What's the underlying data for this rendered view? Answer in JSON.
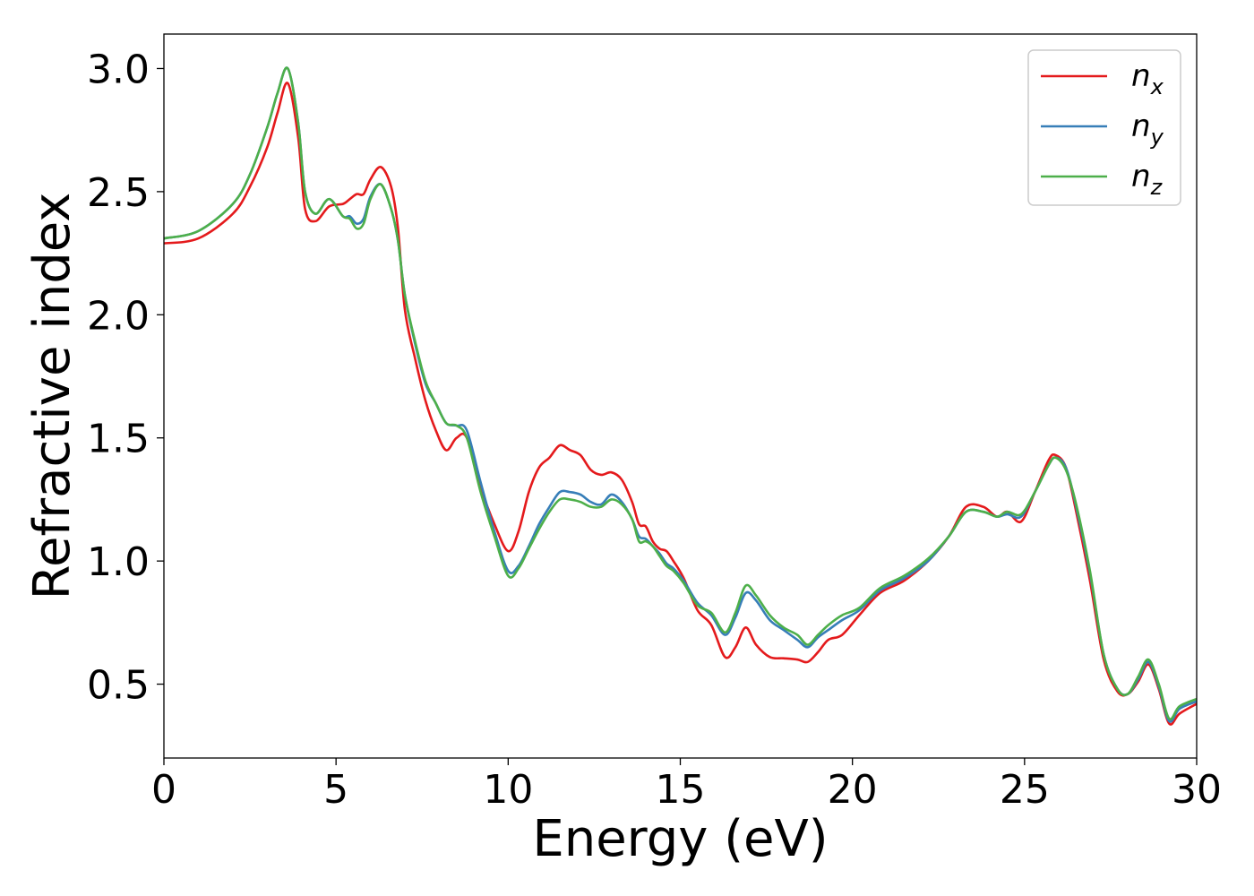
{
  "chart_data": {
    "type": "line",
    "xlabel": "Energy (eV)",
    "ylabel": "Refractive index",
    "xlim": [
      0,
      30
    ],
    "ylim": [
      0.2,
      3.14
    ],
    "xticks": [
      0,
      5,
      10,
      15,
      20,
      25,
      30
    ],
    "xtick_labels": [
      "0",
      "5",
      "10",
      "15",
      "20",
      "25",
      "30"
    ],
    "yticks": [
      0.5,
      1.0,
      1.5,
      2.0,
      2.5,
      3.0
    ],
    "ytick_labels": [
      "0.5",
      "1.0",
      "1.5",
      "2.0",
      "2.5",
      "3.0"
    ],
    "grid": false,
    "legend_position": "top-right",
    "series": [
      {
        "name": "n_x",
        "label_base": "n",
        "label_sub": "x",
        "color": "#e41a1c",
        "x": [
          0,
          1,
          2,
          2.5,
          3,
          3.3,
          3.6,
          3.9,
          4.1,
          4.4,
          4.8,
          5.2,
          5.4,
          5.6,
          5.8,
          6.0,
          6.3,
          6.6,
          6.8,
          7.0,
          7.3,
          7.6,
          7.9,
          8.2,
          8.5,
          8.8,
          9.2,
          9.6,
          10.0,
          10.3,
          10.6,
          10.9,
          11.2,
          11.5,
          11.8,
          12.1,
          12.4,
          12.7,
          13.0,
          13.3,
          13.6,
          13.8,
          14.0,
          14.2,
          14.4,
          14.6,
          14.8,
          15.1,
          15.5,
          15.9,
          16.3,
          16.6,
          16.9,
          17.2,
          17.6,
          18.0,
          18.4,
          18.7,
          19.0,
          19.3,
          19.7,
          20.2,
          20.8,
          21.5,
          22.2,
          22.8,
          23.3,
          23.8,
          24.2,
          24.5,
          24.9,
          25.3,
          25.7,
          25.9,
          26.2,
          26.5,
          26.9,
          27.3,
          27.7,
          28.0,
          28.3,
          28.6,
          28.9,
          29.2,
          29.5,
          30.0
        ],
        "y": [
          2.29,
          2.31,
          2.41,
          2.52,
          2.68,
          2.82,
          2.94,
          2.72,
          2.43,
          2.38,
          2.44,
          2.45,
          2.47,
          2.49,
          2.49,
          2.55,
          2.6,
          2.52,
          2.35,
          2.02,
          1.82,
          1.65,
          1.53,
          1.45,
          1.5,
          1.5,
          1.3,
          1.15,
          1.04,
          1.12,
          1.28,
          1.38,
          1.42,
          1.47,
          1.45,
          1.43,
          1.37,
          1.35,
          1.36,
          1.33,
          1.24,
          1.15,
          1.14,
          1.08,
          1.05,
          1.04,
          1.0,
          0.93,
          0.8,
          0.74,
          0.61,
          0.65,
          0.73,
          0.66,
          0.61,
          0.605,
          0.6,
          0.59,
          0.63,
          0.68,
          0.7,
          0.78,
          0.87,
          0.92,
          1.0,
          1.1,
          1.22,
          1.22,
          1.18,
          1.2,
          1.16,
          1.28,
          1.41,
          1.43,
          1.38,
          1.2,
          0.92,
          0.6,
          0.47,
          0.46,
          0.51,
          0.58,
          0.48,
          0.34,
          0.38,
          0.42
        ]
      },
      {
        "name": "n_y",
        "label_base": "n",
        "label_sub": "y",
        "color": "#377eb8",
        "x": [
          0,
          1,
          2,
          2.5,
          3,
          3.3,
          3.6,
          3.9,
          4.1,
          4.4,
          4.8,
          5.2,
          5.4,
          5.6,
          5.8,
          6.0,
          6.3,
          6.6,
          6.8,
          7.0,
          7.3,
          7.6,
          7.9,
          8.2,
          8.5,
          8.8,
          9.2,
          9.6,
          10.0,
          10.3,
          10.6,
          10.9,
          11.2,
          11.5,
          11.8,
          12.1,
          12.4,
          12.7,
          13.0,
          13.3,
          13.6,
          13.8,
          14.0,
          14.2,
          14.4,
          14.6,
          14.8,
          15.1,
          15.5,
          15.9,
          16.3,
          16.6,
          16.9,
          17.2,
          17.6,
          18.0,
          18.4,
          18.7,
          19.0,
          19.3,
          19.7,
          20.2,
          20.8,
          21.5,
          22.2,
          22.8,
          23.3,
          23.8,
          24.2,
          24.5,
          24.9,
          25.3,
          25.7,
          25.9,
          26.2,
          26.5,
          26.9,
          27.3,
          27.7,
          28.0,
          28.3,
          28.6,
          28.9,
          29.2,
          29.5,
          30.0
        ],
        "y": [
          2.31,
          2.34,
          2.45,
          2.57,
          2.76,
          2.9,
          3.0,
          2.78,
          2.5,
          2.41,
          2.47,
          2.4,
          2.4,
          2.37,
          2.39,
          2.48,
          2.53,
          2.43,
          2.3,
          2.08,
          1.88,
          1.72,
          1.64,
          1.56,
          1.55,
          1.53,
          1.32,
          1.12,
          0.96,
          0.98,
          1.06,
          1.15,
          1.22,
          1.28,
          1.28,
          1.27,
          1.24,
          1.23,
          1.27,
          1.24,
          1.17,
          1.1,
          1.09,
          1.06,
          1.03,
          0.99,
          0.97,
          0.92,
          0.83,
          0.78,
          0.7,
          0.77,
          0.87,
          0.84,
          0.76,
          0.72,
          0.68,
          0.65,
          0.69,
          0.72,
          0.76,
          0.8,
          0.88,
          0.93,
          1.0,
          1.1,
          1.2,
          1.2,
          1.18,
          1.19,
          1.18,
          1.28,
          1.39,
          1.42,
          1.38,
          1.22,
          0.95,
          0.62,
          0.48,
          0.46,
          0.52,
          0.59,
          0.49,
          0.35,
          0.4,
          0.43
        ]
      },
      {
        "name": "n_z",
        "label_base": "n",
        "label_sub": "z",
        "color": "#4daf4a",
        "x": [
          0,
          1,
          2,
          2.5,
          3,
          3.3,
          3.6,
          3.9,
          4.1,
          4.4,
          4.8,
          5.2,
          5.4,
          5.6,
          5.8,
          6.0,
          6.3,
          6.6,
          6.8,
          7.0,
          7.3,
          7.6,
          7.9,
          8.2,
          8.5,
          8.8,
          9.2,
          9.6,
          10.0,
          10.3,
          10.6,
          10.9,
          11.2,
          11.5,
          11.8,
          12.1,
          12.4,
          12.7,
          13.0,
          13.3,
          13.6,
          13.8,
          14.0,
          14.2,
          14.4,
          14.6,
          14.8,
          15.1,
          15.5,
          15.9,
          16.3,
          16.6,
          16.9,
          17.2,
          17.6,
          18.0,
          18.4,
          18.7,
          19.0,
          19.3,
          19.7,
          20.2,
          20.8,
          21.5,
          22.2,
          22.8,
          23.3,
          23.8,
          24.2,
          24.5,
          24.9,
          25.3,
          25.7,
          25.9,
          26.2,
          26.5,
          26.9,
          27.3,
          27.7,
          28.0,
          28.3,
          28.6,
          28.9,
          29.2,
          29.5,
          30.0
        ],
        "y": [
          2.31,
          2.34,
          2.45,
          2.57,
          2.76,
          2.9,
          3.0,
          2.78,
          2.5,
          2.41,
          2.47,
          2.4,
          2.39,
          2.35,
          2.37,
          2.47,
          2.53,
          2.43,
          2.3,
          2.08,
          1.89,
          1.73,
          1.64,
          1.56,
          1.55,
          1.5,
          1.28,
          1.1,
          0.94,
          0.97,
          1.05,
          1.13,
          1.2,
          1.25,
          1.25,
          1.24,
          1.22,
          1.22,
          1.25,
          1.23,
          1.17,
          1.08,
          1.08,
          1.06,
          1.02,
          0.98,
          0.96,
          0.91,
          0.82,
          0.79,
          0.71,
          0.79,
          0.9,
          0.86,
          0.78,
          0.73,
          0.7,
          0.66,
          0.7,
          0.74,
          0.78,
          0.81,
          0.89,
          0.94,
          1.01,
          1.1,
          1.2,
          1.2,
          1.18,
          1.2,
          1.19,
          1.28,
          1.39,
          1.42,
          1.37,
          1.23,
          0.96,
          0.62,
          0.48,
          0.46,
          0.53,
          0.6,
          0.5,
          0.36,
          0.41,
          0.44
        ]
      }
    ]
  }
}
